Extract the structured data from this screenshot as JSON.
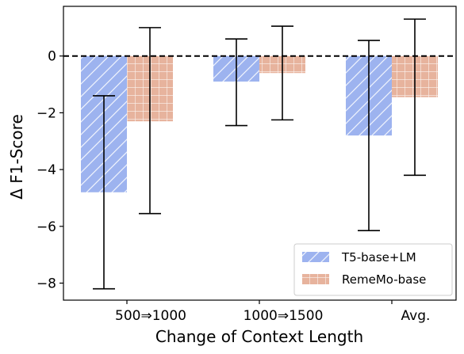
{
  "chart_data": {
    "type": "bar",
    "xlabel": "Change of Context Length",
    "ylabel": "Δ F1-Score",
    "categories": [
      "500⇒1000",
      "1000⇒1500",
      "Avg."
    ],
    "ylim": [
      -8.6,
      1.75
    ],
    "yticks": [
      0,
      -2,
      -4,
      -6,
      -8
    ],
    "ytick_labels": [
      "0",
      "−2",
      "−4",
      "−6",
      "−8"
    ],
    "reference_line": {
      "y": 0,
      "style": "dashed"
    },
    "grid": false,
    "legend_position": "bottom-right",
    "series": [
      {
        "name": "T5-base+LM",
        "color": "#9db3ef",
        "hatch": "diagonal",
        "values": [
          -4.8,
          -0.9,
          -2.8
        ],
        "error_low": [
          -8.2,
          -2.45,
          -6.15
        ],
        "error_high": [
          -1.4,
          0.6,
          0.55
        ]
      },
      {
        "name": "RemeMo-base",
        "color": "#e7b39d",
        "hatch": "grid",
        "values": [
          -2.3,
          -0.6,
          -1.45
        ],
        "error_low": [
          -5.55,
          -2.25,
          -4.2
        ],
        "error_high": [
          1.0,
          1.05,
          1.3
        ]
      }
    ]
  }
}
